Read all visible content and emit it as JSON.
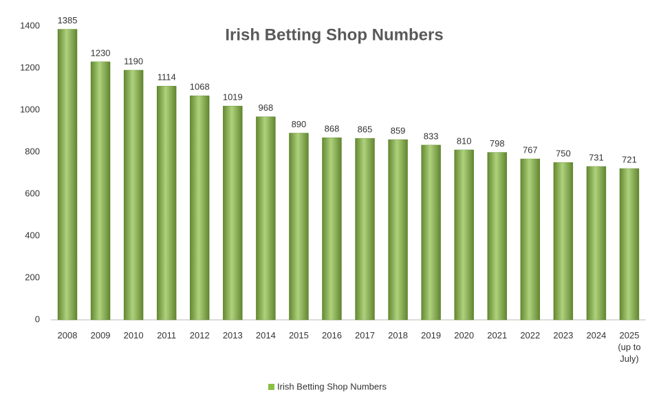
{
  "chart_data": {
    "type": "bar",
    "title": "Irish Betting Shop Numbers",
    "categories": [
      "2008",
      "2009",
      "2010",
      "2011",
      "2012",
      "2013",
      "2014",
      "2015",
      "2016",
      "2017",
      "2018",
      "2019",
      "2020",
      "2021",
      "2022",
      "2023",
      "2024",
      "2025 (up to July)"
    ],
    "series": [
      {
        "name": "Irish Betting Shop Numbers",
        "color": "#8cbf45",
        "values": [
          1385,
          1230,
          1190,
          1114,
          1068,
          1019,
          968,
          890,
          868,
          865,
          859,
          833,
          810,
          798,
          767,
          750,
          731,
          721
        ]
      }
    ],
    "ylim": [
      0,
      1400
    ],
    "yticks": [
      0,
      200,
      400,
      600,
      800,
      1000,
      1200,
      1400
    ],
    "grid": false,
    "legend": "bottom"
  }
}
